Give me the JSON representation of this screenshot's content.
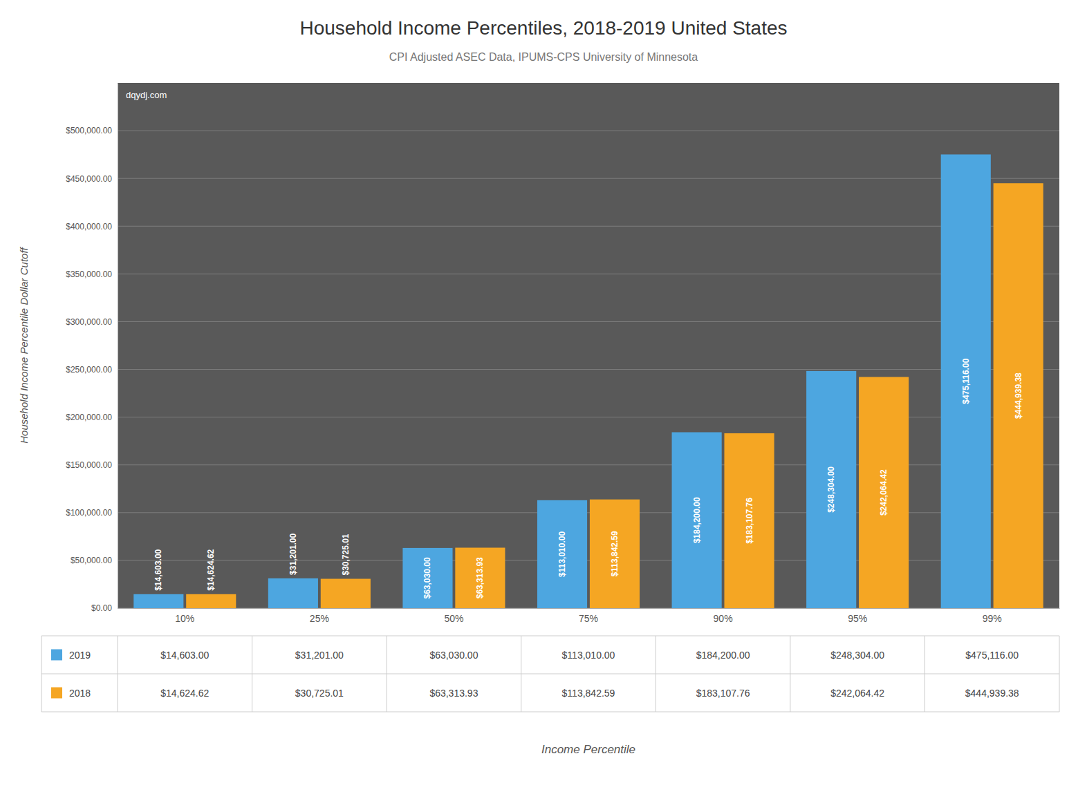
{
  "chart_data": {
    "type": "bar",
    "title": "Household Income Percentiles, 2018-2019 United States",
    "subtitle": "CPI Adjusted ASEC Data, IPUMS-CPS University of Minnesota",
    "annotations": [
      "dqydj.com"
    ],
    "xlabel": "Income Percentile",
    "ylabel": "Household Income Percentile Dollar Cutoff",
    "categories": [
      "10%",
      "25%",
      "50%",
      "75%",
      "90%",
      "95%",
      "99%"
    ],
    "series": [
      {
        "name": "2019",
        "color": "#4DA6E0",
        "values": [
          14603.0,
          31201.0,
          63030.0,
          113010.0,
          184200.0,
          248304.0,
          475116.0
        ],
        "value_labels": [
          "$14,603.00",
          "$31,201.00",
          "$63,030.00",
          "$113,010.00",
          "$184,200.00",
          "$248,304.00",
          "$475,116.00"
        ]
      },
      {
        "name": "2018",
        "color": "#F5A623",
        "values": [
          14624.62,
          30725.01,
          63313.93,
          113842.59,
          183107.76,
          242064.42,
          444939.38
        ],
        "value_labels": [
          "$14,624.62",
          "$30,725.01",
          "$63,313.93",
          "$113,842.59",
          "$183,107.76",
          "$242,064.42",
          "$444,939.38"
        ]
      }
    ],
    "ylim": [
      0,
      550000
    ],
    "yticks": [
      {
        "value": 0,
        "label": "$0.00"
      },
      {
        "value": 50000,
        "label": "$50,000.00"
      },
      {
        "value": 100000,
        "label": "$100,000.00"
      },
      {
        "value": 150000,
        "label": "$150,000.00"
      },
      {
        "value": 200000,
        "label": "$200,000.00"
      },
      {
        "value": 250000,
        "label": "$250,000.00"
      },
      {
        "value": 300000,
        "label": "$300,000.00"
      },
      {
        "value": 350000,
        "label": "$350,000.00"
      },
      {
        "value": 400000,
        "label": "$400,000.00"
      },
      {
        "value": 450000,
        "label": "$450,000.00"
      },
      {
        "value": 500000,
        "label": "$500,000.00"
      }
    ],
    "grid": true,
    "data_labels": true
  }
}
